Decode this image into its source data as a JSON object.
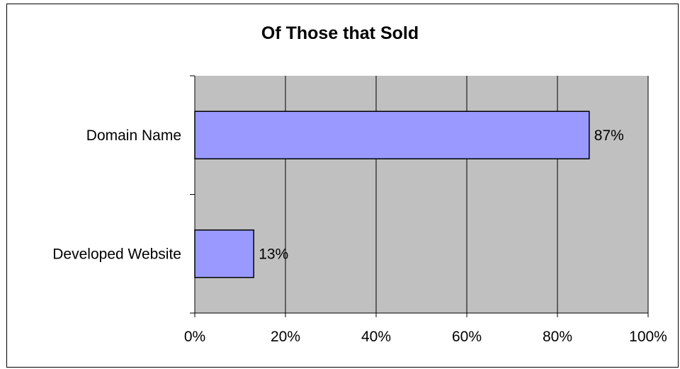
{
  "chart_data": {
    "type": "bar",
    "orientation": "horizontal",
    "title": "Of Those that Sold",
    "categories": [
      "Domain Name",
      "Developed Website"
    ],
    "values": [
      87,
      13
    ],
    "data_labels": [
      "87%",
      "13%"
    ],
    "xlim": [
      0,
      100
    ],
    "x_ticks": [
      0,
      20,
      40,
      60,
      80,
      100
    ],
    "x_tick_labels": [
      "0%",
      "20%",
      "40%",
      "60%",
      "80%",
      "100%"
    ],
    "xlabel": "",
    "ylabel": "",
    "grid": "vertical",
    "legend": "none",
    "colors": {
      "bar": "#9999ff",
      "plot_background": "#c0c0c0",
      "gridline": "#000000"
    }
  }
}
